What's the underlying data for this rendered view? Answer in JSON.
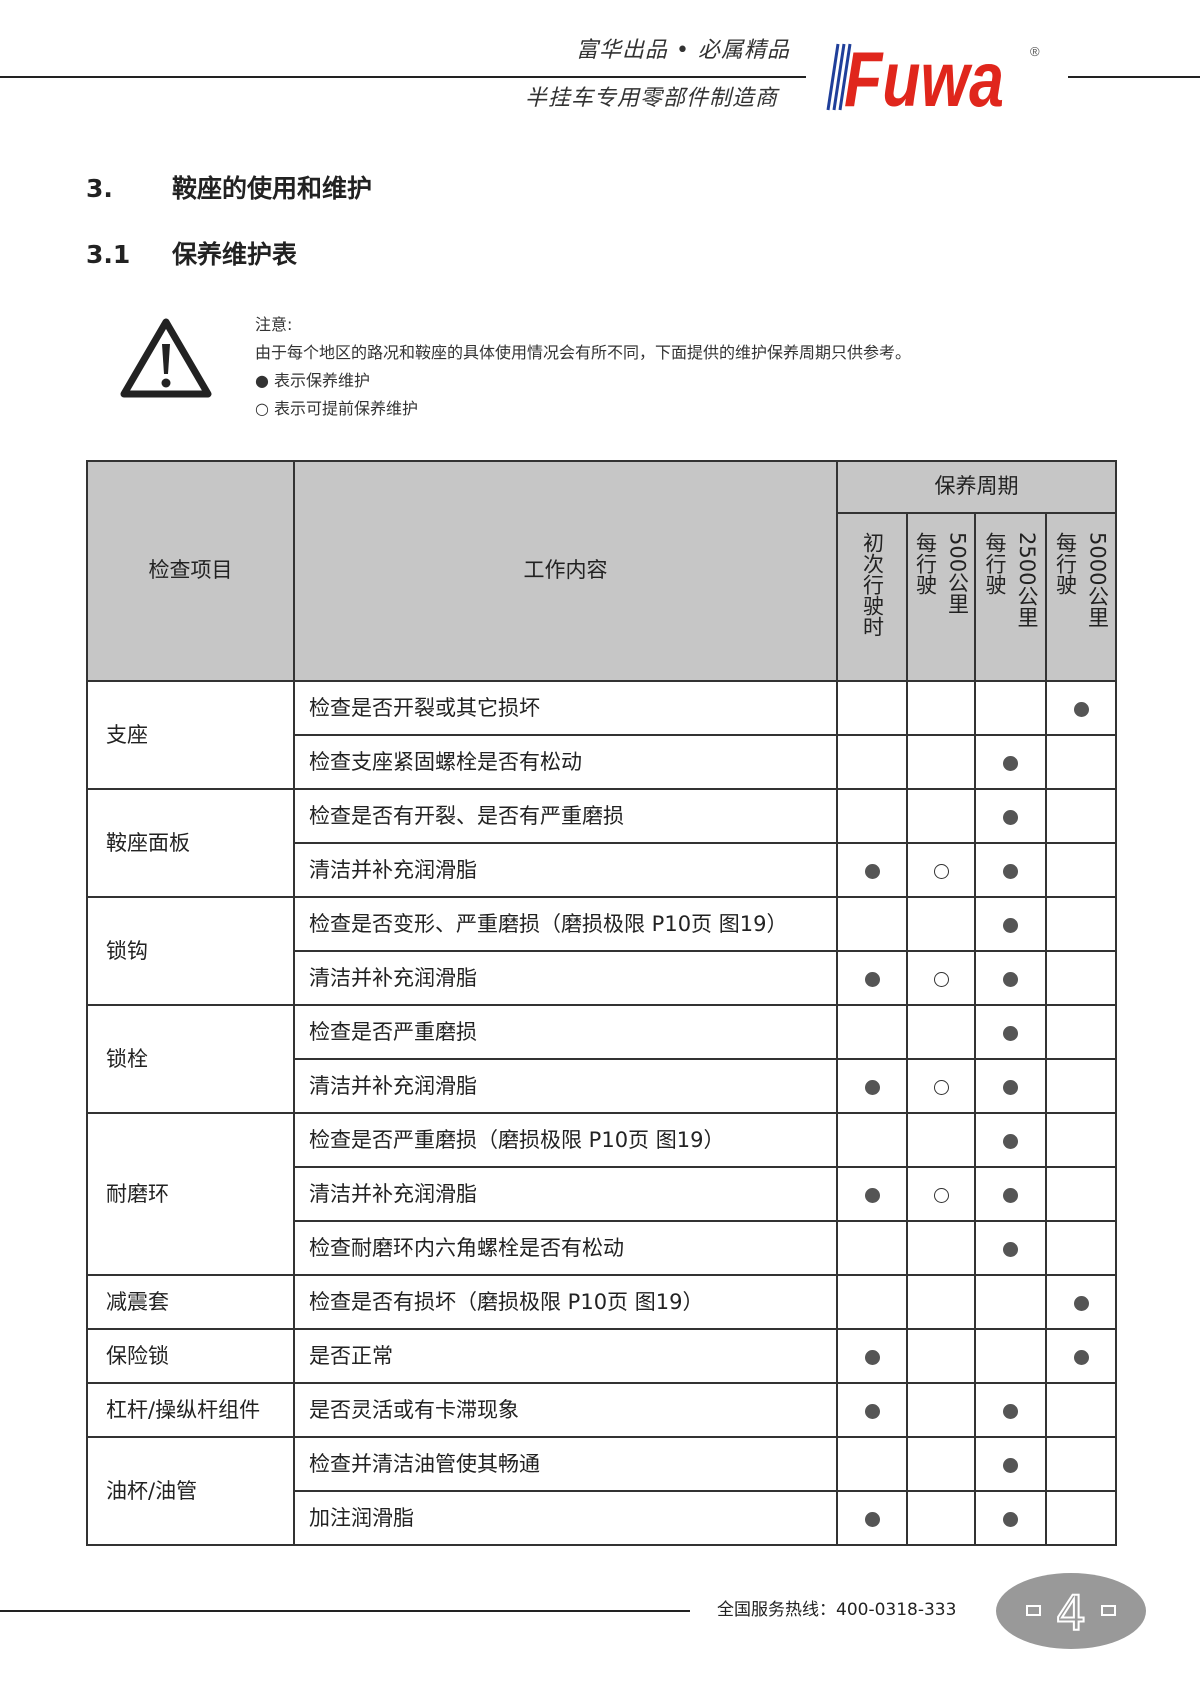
{
  "header": {
    "slogan_line1": "富华出品 • 必属精品",
    "slogan_line2": "半挂车专用零部件制造商",
    "logo_text": "Fuwa",
    "logo_mark": "®",
    "brand_color": "#e0261c",
    "stripe_color": "#1f3f9a"
  },
  "section": {
    "number": "3.",
    "title": "鞍座的使用和维护"
  },
  "subsection": {
    "number": "3.1",
    "title": "保养维护表"
  },
  "notice": {
    "icon": "warning-triangle-icon",
    "label": "注意:",
    "text": "由于每个地区的路况和鞍座的具体使用情况会有所不同，下面提供的维护保养周期只供参考。",
    "legend_filled": "● 表示保养维护",
    "legend_open": "○ 表示可提前保养维护"
  },
  "table": {
    "col_item": "检查项目",
    "col_work": "工作内容",
    "col_period": "保养周期",
    "periods": [
      {
        "line1": "初次行驶时",
        "line2": ""
      },
      {
        "line1": "每行驶",
        "line2": "500公里"
      },
      {
        "line1": "每行驶",
        "line2": "2500公里"
      },
      {
        "line1": "每行驶",
        "line2": "5000公里"
      }
    ],
    "groups": [
      {
        "item": "支座",
        "rows": [
          {
            "task": "检查是否开裂或其它损坏",
            "marks": [
              "",
              "",
              "",
              "filled"
            ]
          },
          {
            "task": "检查支座紧固螺栓是否有松动",
            "marks": [
              "",
              "",
              "filled",
              ""
            ]
          }
        ]
      },
      {
        "item": "鞍座面板",
        "rows": [
          {
            "task": "检查是否有开裂、是否有严重磨损",
            "marks": [
              "",
              "",
              "filled",
              ""
            ]
          },
          {
            "task": "清洁并补充润滑脂",
            "marks": [
              "filled",
              "open",
              "filled",
              ""
            ]
          }
        ]
      },
      {
        "item": "锁钩",
        "rows": [
          {
            "task": "检查是否变形、严重磨损（磨损极限 P10页 图19）",
            "marks": [
              "",
              "",
              "filled",
              ""
            ]
          },
          {
            "task": "清洁并补充润滑脂",
            "marks": [
              "filled",
              "open",
              "filled",
              ""
            ]
          }
        ]
      },
      {
        "item": "锁栓",
        "rows": [
          {
            "task": "检查是否严重磨损",
            "marks": [
              "",
              "",
              "filled",
              ""
            ]
          },
          {
            "task": "清洁并补充润滑脂",
            "marks": [
              "filled",
              "open",
              "filled",
              ""
            ]
          }
        ]
      },
      {
        "item": "耐磨环",
        "rows": [
          {
            "task": "检查是否严重磨损（磨损极限 P10页 图19）",
            "marks": [
              "",
              "",
              "filled",
              ""
            ]
          },
          {
            "task": "清洁并补充润滑脂",
            "marks": [
              "filled",
              "open",
              "filled",
              ""
            ]
          },
          {
            "task": "检查耐磨环内六角螺栓是否有松动",
            "marks": [
              "",
              "",
              "filled",
              ""
            ]
          }
        ]
      },
      {
        "item": "减震套",
        "rows": [
          {
            "task": "检查是否有损坏（磨损极限 P10页 图19）",
            "marks": [
              "",
              "",
              "",
              "filled"
            ]
          }
        ]
      },
      {
        "item": "保险锁",
        "rows": [
          {
            "task": "是否正常",
            "marks": [
              "filled",
              "",
              "",
              "filled"
            ]
          }
        ]
      },
      {
        "item": "杠杆/操纵杆组件",
        "rows": [
          {
            "task": "是否灵活或有卡滞现象",
            "marks": [
              "filled",
              "",
              "filled",
              ""
            ]
          }
        ]
      },
      {
        "item": "油杯/油管",
        "rows": [
          {
            "task": "检查并清洁油管使其畅通",
            "marks": [
              "",
              "",
              "filled",
              ""
            ]
          },
          {
            "task": "加注润滑脂",
            "marks": [
              "filled",
              "",
              "filled",
              ""
            ]
          }
        ]
      }
    ]
  },
  "footer": {
    "hotline": "全国服务热线：400-0318-333",
    "page_number": "4",
    "badge_color": "#999999"
  }
}
